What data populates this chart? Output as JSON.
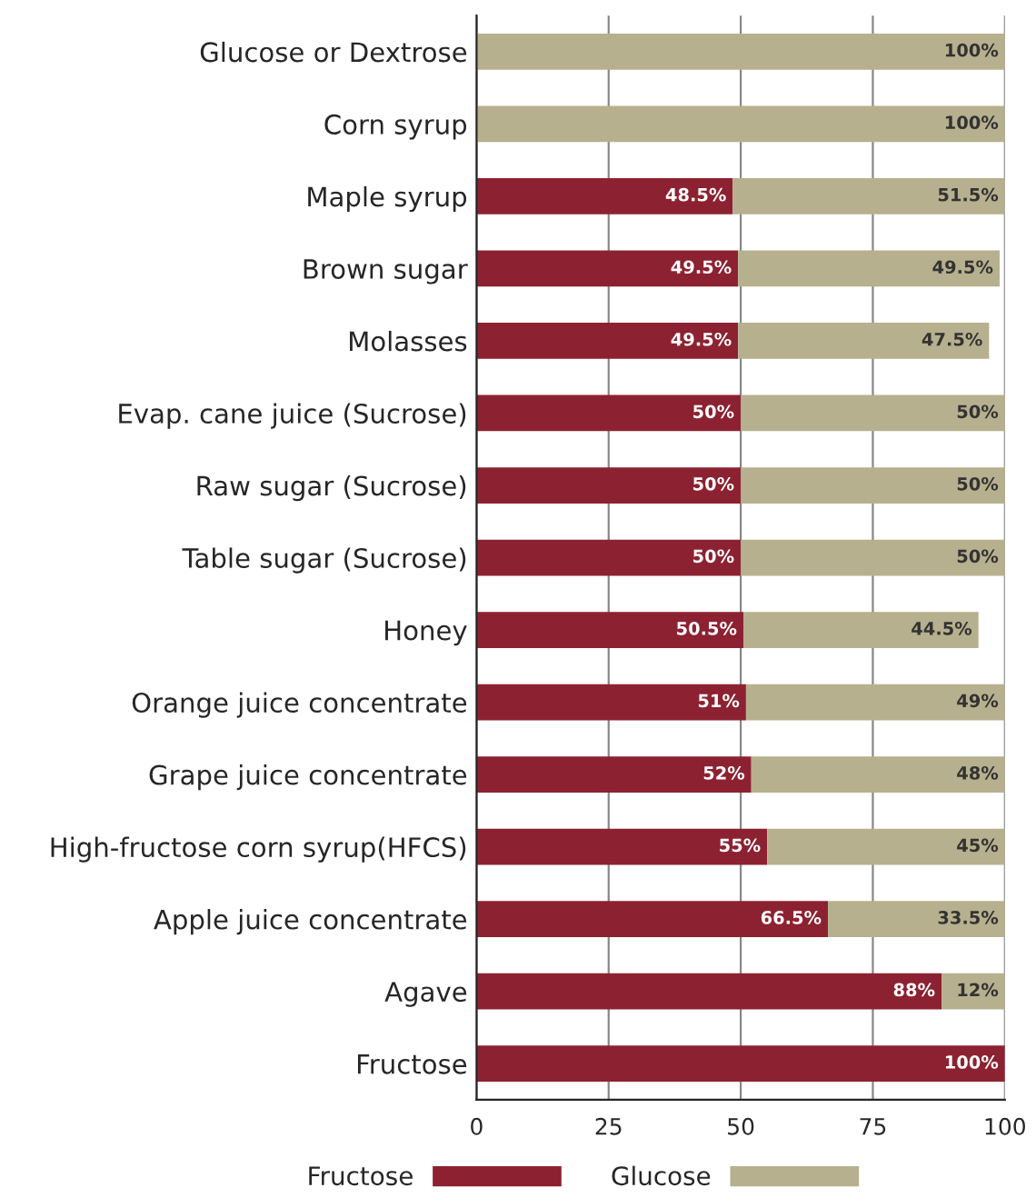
{
  "chart_data": {
    "type": "bar",
    "orientation": "horizontal",
    "stacked": true,
    "categories": [
      "Glucose or Dextrose",
      "Corn syrup",
      "Maple syrup",
      "Brown sugar",
      "Molasses",
      "Evap. cane juice (Sucrose)",
      "Raw sugar (Sucrose)",
      "Table sugar (Sucrose)",
      "Honey",
      "Orange juice concentrate",
      "Grape juice concentrate",
      "High-fructose corn syrup(HFCS)",
      "Apple juice concentrate",
      "Agave",
      "Fructose"
    ],
    "series": [
      {
        "name": "Fructose",
        "color": "#8c2231",
        "values": [
          0,
          0,
          48.5,
          49.5,
          49.5,
          50,
          50,
          50,
          50.5,
          51,
          52,
          55,
          66.5,
          88,
          100
        ],
        "value_labels": [
          null,
          null,
          "48.5%",
          "49.5%",
          "49.5%",
          "50%",
          "50%",
          "50%",
          "50.5%",
          "51%",
          "52%",
          "55%",
          "66.5%",
          "88%",
          "100%"
        ]
      },
      {
        "name": "Glucose",
        "color": "#b7b08e",
        "values": [
          100,
          100,
          51.5,
          49.5,
          47.5,
          50,
          50,
          50,
          44.5,
          49,
          48,
          45,
          33.5,
          12,
          0
        ],
        "value_labels": [
          "100%",
          "100%",
          "51.5%",
          "49.5%",
          "47.5%",
          "50%",
          "50%",
          "50%",
          "44.5%",
          "49%",
          "48%",
          "45%",
          "33.5%",
          "12%",
          null
        ]
      }
    ],
    "xlim": [
      0,
      100
    ],
    "xticks": [
      0,
      25,
      50,
      75,
      100
    ],
    "grid": "x",
    "legend": "bottom"
  }
}
